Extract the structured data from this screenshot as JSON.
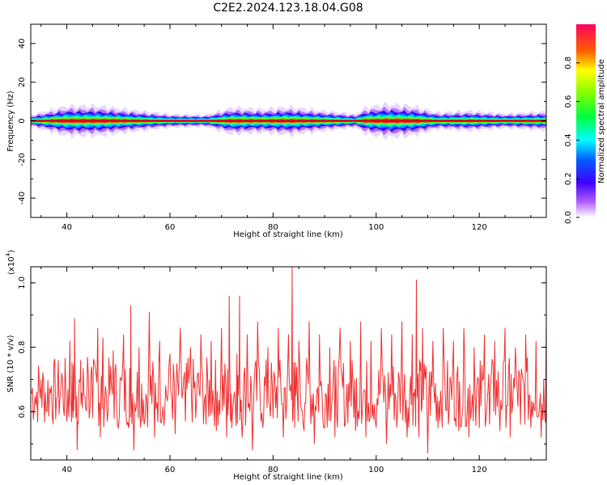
{
  "figure_title": "C2E2.2024.123.18.04.G08",
  "colors": {
    "snr_line": "#f03030",
    "axis": "#000000"
  },
  "chart_data": [
    {
      "type": "heatmap",
      "title": "",
      "xlabel": "Height of straight line (km)",
      "ylabel": "Frequency (Hz)",
      "xlim": [
        33,
        133
      ],
      "ylim": [
        -50,
        50
      ],
      "x_ticks": [
        40,
        60,
        80,
        100,
        120
      ],
      "x_tick_labels": [
        "40",
        "60",
        "80",
        "100",
        "120"
      ],
      "y_ticks": [
        -40,
        -20,
        0,
        20,
        40
      ],
      "y_tick_labels": [
        "-40",
        "-20",
        "0",
        "20",
        "40"
      ],
      "band_center_hz": 0,
      "band_halfwidth_hz": [
        {
          "x": 33,
          "w": 1.8
        },
        {
          "x": 40,
          "w": 4.5
        },
        {
          "x": 46,
          "w": 4.5
        },
        {
          "x": 53,
          "w": 3.2
        },
        {
          "x": 60,
          "w": 2.0
        },
        {
          "x": 67,
          "w": 1.8
        },
        {
          "x": 72,
          "w": 4.0
        },
        {
          "x": 78,
          "w": 3.5
        },
        {
          "x": 83,
          "w": 4.2
        },
        {
          "x": 90,
          "w": 3.0
        },
        {
          "x": 96,
          "w": 2.0
        },
        {
          "x": 98,
          "w": 4.0
        },
        {
          "x": 102,
          "w": 5.0
        },
        {
          "x": 107,
          "w": 4.5
        },
        {
          "x": 112,
          "w": 2.5
        },
        {
          "x": 118,
          "w": 3.0
        },
        {
          "x": 125,
          "w": 2.2
        },
        {
          "x": 133,
          "w": 2.8
        }
      ],
      "grid": false,
      "colorbar": {
        "label": "Normalized spectral amplitude",
        "range": [
          0,
          1
        ],
        "ticks": [
          0.0,
          0.2,
          0.4,
          0.6,
          0.8
        ],
        "tick_labels": [
          "0.0",
          "0.2",
          "0.4",
          "0.6",
          "0.8"
        ]
      }
    },
    {
      "type": "line",
      "title": "",
      "xlabel": "Height of straight line (km)",
      "ylabel": "SNR (10 * v/v)",
      "y_scale_label": "(x10",
      "y_scale_exp": "4",
      "xlim": [
        33,
        133
      ],
      "ylim": [
        0.45,
        1.05
      ],
      "x_ticks": [
        40,
        60,
        80,
        100,
        120
      ],
      "x_tick_labels": [
        "40",
        "60",
        "80",
        "100",
        "120"
      ],
      "y_ticks": [
        0.6,
        0.8,
        1.0
      ],
      "y_tick_labels": [
        "0.6",
        "0.8",
        "1.0"
      ],
      "grid": false,
      "series": [
        {
          "points": [
            [
              33,
              0.66
            ],
            [
              34,
              0.62
            ],
            [
              35,
              0.7
            ],
            [
              36,
              0.6
            ],
            [
              37,
              0.68
            ],
            [
              38,
              0.64
            ],
            [
              39,
              0.72
            ],
            [
              40,
              0.57
            ],
            [
              40.6,
              0.82
            ],
            [
              41.2,
              0.58
            ],
            [
              41.5,
              0.89
            ],
            [
              42,
              0.48
            ],
            [
              42.6,
              0.7
            ],
            [
              43,
              0.61
            ],
            [
              44,
              0.77
            ],
            [
              45,
              0.58
            ],
            [
              46,
              0.86
            ],
            [
              46.5,
              0.52
            ],
            [
              47,
              0.83
            ],
            [
              48,
              0.6
            ],
            [
              49,
              0.79
            ],
            [
              50,
              0.55
            ],
            [
              51,
              0.84
            ],
            [
              52,
              0.55
            ],
            [
              52.4,
              0.93
            ],
            [
              53,
              0.48
            ],
            [
              54,
              0.8
            ],
            [
              55,
              0.56
            ],
            [
              56,
              0.91
            ],
            [
              57,
              0.52
            ],
            [
              58,
              0.82
            ],
            [
              59,
              0.6
            ],
            [
              60,
              0.78
            ],
            [
              61,
              0.53
            ],
            [
              62,
              0.86
            ],
            [
              63,
              0.57
            ],
            [
              64,
              0.8
            ],
            [
              65,
              0.58
            ],
            [
              66,
              0.84
            ],
            [
              67,
              0.56
            ],
            [
              68,
              0.82
            ],
            [
              69,
              0.54
            ],
            [
              70,
              0.86
            ],
            [
              71,
              0.52
            ],
            [
              71.5,
              0.96
            ],
            [
              72,
              0.55
            ],
            [
              73,
              0.78
            ],
            [
              73.5,
              0.96
            ],
            [
              74,
              0.52
            ],
            [
              75,
              0.84
            ],
            [
              76,
              0.48
            ],
            [
              77,
              0.88
            ],
            [
              78,
              0.55
            ],
            [
              79,
              0.8
            ],
            [
              80,
              0.58
            ],
            [
              81,
              0.86
            ],
            [
              82,
              0.52
            ],
            [
              83,
              0.84
            ],
            [
              83.7,
              1.05
            ],
            [
              84.2,
              0.55
            ],
            [
              85,
              0.82
            ],
            [
              86,
              0.54
            ],
            [
              87,
              0.88
            ],
            [
              88,
              0.5
            ],
            [
              89,
              0.84
            ],
            [
              90,
              0.55
            ],
            [
              91,
              0.8
            ],
            [
              92,
              0.52
            ],
            [
              93,
              0.86
            ],
            [
              94,
              0.56
            ],
            [
              95,
              0.82
            ],
            [
              96,
              0.54
            ],
            [
              97,
              0.88
            ],
            [
              98,
              0.52
            ],
            [
              99,
              0.82
            ],
            [
              100,
              0.55
            ],
            [
              101,
              0.86
            ],
            [
              102,
              0.5
            ],
            [
              103,
              0.84
            ],
            [
              104,
              0.55
            ],
            [
              105,
              0.88
            ],
            [
              106,
              0.52
            ],
            [
              107,
              0.84
            ],
            [
              107.8,
              1.01
            ],
            [
              108.3,
              0.52
            ],
            [
              109,
              0.86
            ],
            [
              110,
              0.47
            ],
            [
              111,
              0.82
            ],
            [
              112,
              0.55
            ],
            [
              113,
              0.86
            ],
            [
              114,
              0.56
            ],
            [
              115,
              0.82
            ],
            [
              116,
              0.54
            ],
            [
              117,
              0.86
            ],
            [
              118,
              0.52
            ],
            [
              119,
              0.8
            ],
            [
              120,
              0.55
            ],
            [
              121,
              0.84
            ],
            [
              122,
              0.56
            ],
            [
              123,
              0.82
            ],
            [
              124,
              0.54
            ],
            [
              125,
              0.86
            ],
            [
              126,
              0.52
            ],
            [
              127,
              0.8
            ],
            [
              128,
              0.56
            ],
            [
              129,
              0.84
            ],
            [
              130,
              0.55
            ],
            [
              131,
              0.82
            ],
            [
              132,
              0.52
            ],
            [
              133,
              0.88
            ]
          ]
        }
      ]
    }
  ]
}
